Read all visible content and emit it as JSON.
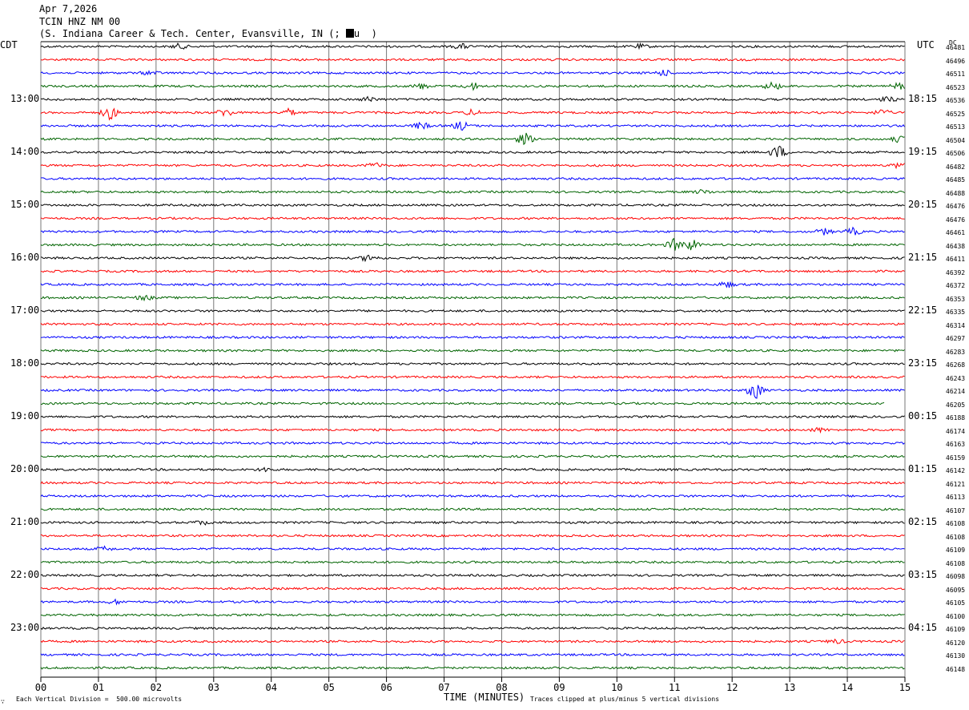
{
  "header": {
    "date": "Apr 7,2026",
    "station": "TCIN HNZ NM 00",
    "location_prefix": "(S. Indiana Career & Tech. Center, Evansville, IN (;",
    "location_suffix": "u  )"
  },
  "left_tz": "CDT",
  "right_tz": "UTC",
  "dc_label": "DC",
  "footer": {
    "scale": "Each Vertical Division =  500.00 microvolts",
    "xlabel": "TIME (MINUTES)",
    "clip_note": "Traces clipped at plus/minus 5 vertical divisions",
    "corner_mark": "∵"
  },
  "chart_data": {
    "type": "line",
    "xlabel": "TIME (MINUTES)",
    "xlim": [
      0,
      15
    ],
    "x_ticks": [
      "00",
      "01",
      "02",
      "03",
      "04",
      "05",
      "06",
      "07",
      "08",
      "09",
      "10",
      "11",
      "12",
      "13",
      "14",
      "15"
    ],
    "trace_colors": [
      "#000000",
      "#ff0000",
      "#0000ff",
      "#006400"
    ],
    "left_time_labels": [
      {
        "row": 4,
        "text": "13:00"
      },
      {
        "row": 8,
        "text": "14:00"
      },
      {
        "row": 12,
        "text": "15:00"
      },
      {
        "row": 16,
        "text": "16:00"
      },
      {
        "row": 20,
        "text": "17:00"
      },
      {
        "row": 24,
        "text": "18:00"
      },
      {
        "row": 28,
        "text": "19:00"
      },
      {
        "row": 32,
        "text": "20:00"
      },
      {
        "row": 36,
        "text": "21:00"
      },
      {
        "row": 40,
        "text": "22:00"
      },
      {
        "row": 44,
        "text": "23:00"
      }
    ],
    "right_time_labels": [
      {
        "row": 4,
        "text": "18:15"
      },
      {
        "row": 8,
        "text": "19:15"
      },
      {
        "row": 12,
        "text": "20:15"
      },
      {
        "row": 16,
        "text": "21:15"
      },
      {
        "row": 20,
        "text": "22:15"
      },
      {
        "row": 24,
        "text": "23:15"
      },
      {
        "row": 28,
        "text": "00:15"
      },
      {
        "row": 32,
        "text": "01:15"
      },
      {
        "row": 36,
        "text": "02:15"
      },
      {
        "row": 40,
        "text": "03:15"
      },
      {
        "row": 44,
        "text": "04:15"
      }
    ],
    "dc_offsets": [
      "46481",
      "46496",
      "46511",
      "46523",
      "46536",
      "46525",
      "46513",
      "46504",
      "46506",
      "46482",
      "46485",
      "46488",
      "46476",
      "46476",
      "46461",
      "46438",
      "46411",
      "46392",
      "46372",
      "46353",
      "46335",
      "46314",
      "46297",
      "46283",
      "46268",
      "46243",
      "46214",
      "46205",
      "46188",
      "46174",
      "46163",
      "46159",
      "46142",
      "46121",
      "46113",
      "46107",
      "46108",
      "46108",
      "46109",
      "46108",
      "46098",
      "46095",
      "46105",
      "46100",
      "46109",
      "46120",
      "46130",
      "46148"
    ],
    "events": [
      {
        "row": 0,
        "minute": 2.4,
        "amp": 0.5
      },
      {
        "row": 0,
        "minute": 7.3,
        "amp": 0.5
      },
      {
        "row": 0,
        "minute": 10.4,
        "amp": 0.4
      },
      {
        "row": 2,
        "minute": 1.9,
        "amp": 0.4
      },
      {
        "row": 2,
        "minute": 10.8,
        "amp": 0.6
      },
      {
        "row": 3,
        "minute": 6.6,
        "amp": 0.5
      },
      {
        "row": 3,
        "minute": 7.5,
        "amp": 0.7
      },
      {
        "row": 3,
        "minute": 12.7,
        "amp": 0.8
      },
      {
        "row": 3,
        "minute": 14.9,
        "amp": 0.6
      },
      {
        "row": 4,
        "minute": 5.7,
        "amp": 0.5
      },
      {
        "row": 4,
        "minute": 14.7,
        "amp": 0.5
      },
      {
        "row": 5,
        "minute": 1.2,
        "amp": 1.4
      },
      {
        "row": 5,
        "minute": 3.2,
        "amp": 0.8
      },
      {
        "row": 5,
        "minute": 4.3,
        "amp": 0.7
      },
      {
        "row": 5,
        "minute": 7.5,
        "amp": 0.6
      },
      {
        "row": 5,
        "minute": 14.6,
        "amp": 0.6
      },
      {
        "row": 6,
        "minute": 6.6,
        "amp": 0.7
      },
      {
        "row": 6,
        "minute": 7.3,
        "amp": 0.9
      },
      {
        "row": 7,
        "minute": 8.4,
        "amp": 1.2
      },
      {
        "row": 7,
        "minute": 14.9,
        "amp": 0.6
      },
      {
        "row": 8,
        "minute": 12.8,
        "amp": 1.4
      },
      {
        "row": 9,
        "minute": 5.8,
        "amp": 0.5
      },
      {
        "row": 9,
        "minute": 14.9,
        "amp": 0.6
      },
      {
        "row": 11,
        "minute": 11.5,
        "amp": 0.4
      },
      {
        "row": 14,
        "minute": 13.6,
        "amp": 0.6
      },
      {
        "row": 14,
        "minute": 14.1,
        "amp": 0.7
      },
      {
        "row": 15,
        "minute": 11.0,
        "amp": 1.2
      },
      {
        "row": 15,
        "minute": 11.3,
        "amp": 1.1
      },
      {
        "row": 16,
        "minute": 5.7,
        "amp": 0.7
      },
      {
        "row": 18,
        "minute": 11.9,
        "amp": 0.6
      },
      {
        "row": 19,
        "minute": 1.8,
        "amp": 0.5
      },
      {
        "row": 26,
        "minute": 12.4,
        "amp": 1.8
      },
      {
        "row": 29,
        "minute": 13.5,
        "amp": 0.4
      },
      {
        "row": 32,
        "minute": 3.9,
        "amp": 0.4
      },
      {
        "row": 36,
        "minute": 2.8,
        "amp": 0.4
      },
      {
        "row": 38,
        "minute": 1.1,
        "amp": 0.4
      },
      {
        "row": 42,
        "minute": 1.3,
        "amp": 0.4
      },
      {
        "row": 45,
        "minute": 13.8,
        "amp": 0.4
      }
    ]
  }
}
